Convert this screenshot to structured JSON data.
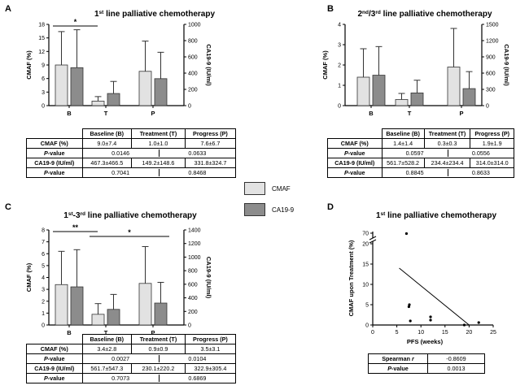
{
  "colors": {
    "cmaf": "#e2e2e2",
    "ca199": "#8c8c8c",
    "axis": "#000000"
  },
  "legend": {
    "cmaf": "CMAF",
    "ca199": "CA19-9"
  },
  "panels": [
    {
      "id": "A",
      "letter": "A",
      "title_pre": "1",
      "title_sup": "st",
      "title_post": " line palliative chemotherapy",
      "ylabel_left": "CMAF (%)",
      "ylabel_right": "CA19-9 (IU/ml)",
      "groups": [
        "B",
        "T",
        "P"
      ],
      "sig": [
        "*"
      ]
    },
    {
      "id": "B",
      "letter": "B",
      "title_pre": "2",
      "title_sup": "nd",
      "title_mid": "/3",
      "title_sup2": "rd",
      "title_post": " line palliative chemotherapy",
      "ylabel_left": "CMAF (%)",
      "ylabel_right": "CA19-9 (IU/ml)",
      "groups": [
        "B",
        "T",
        "P"
      ],
      "sig": []
    },
    {
      "id": "C",
      "letter": "C",
      "title_pre": "1",
      "title_sup": "st",
      "title_mid": "-3",
      "title_sup2": "rd",
      "title_post": " line palliative chemotherapy",
      "ylabel_left": "CMAF (%)",
      "ylabel_right": "CA19-9 (IU/ml)",
      "groups": [
        "B",
        "T",
        "P"
      ],
      "sig": [
        "**",
        "*"
      ]
    },
    {
      "id": "D",
      "letter": "D",
      "title_pre": "1",
      "title_sup": "st",
      "title_post": " line palliative chemotherapy",
      "ylabel_left": "CMAF upon Treatment (%)",
      "xlabel": "PFS (weeks)"
    }
  ],
  "chart_data": [
    {
      "panel": "A",
      "type": "bar",
      "categories": [
        "B",
        "T",
        "P"
      ],
      "series": [
        {
          "name": "CMAF",
          "axis": "left",
          "values": [
            9.0,
            1.0,
            7.6
          ],
          "error": [
            7.4,
            1.0,
            6.7
          ]
        },
        {
          "name": "CA19-9",
          "axis": "right",
          "values": [
            467.3,
            149.2,
            331.8
          ],
          "error": [
            466.5,
            148.6,
            324.7
          ]
        }
      ],
      "ylim_left": [
        0,
        18
      ],
      "yticks_left": [
        0,
        3,
        6,
        9,
        12,
        15,
        18
      ],
      "ylim_right": [
        0,
        1000
      ],
      "yticks_right": [
        0,
        200,
        400,
        600,
        800,
        1000
      ],
      "ylabel_left": "CMAF (%)",
      "ylabel_right": "CA19-9 (IU/ml)",
      "significance": [
        {
          "from": "B",
          "to": "T",
          "label": "*"
        }
      ]
    },
    {
      "panel": "B",
      "type": "bar",
      "categories": [
        "B",
        "T",
        "P"
      ],
      "series": [
        {
          "name": "CMAF",
          "axis": "left",
          "values": [
            1.4,
            0.3,
            1.9
          ],
          "error": [
            1.4,
            0.3,
            1.9
          ]
        },
        {
          "name": "CA19-9",
          "axis": "right",
          "values": [
            561.7,
            234.4,
            314.0
          ],
          "error": [
            528.2,
            234.4,
            314.0
          ]
        }
      ],
      "ylim_left": [
        0,
        4
      ],
      "yticks_left": [
        0,
        1,
        2,
        3,
        4
      ],
      "ylim_right": [
        0,
        1500
      ],
      "yticks_right": [
        0,
        300,
        600,
        900,
        1200,
        1500
      ],
      "ylabel_left": "CMAF (%)",
      "ylabel_right": "CA19-9 (IU/ml)",
      "significance": []
    },
    {
      "panel": "C",
      "type": "bar",
      "categories": [
        "B",
        "T",
        "P"
      ],
      "series": [
        {
          "name": "CMAF",
          "axis": "left",
          "values": [
            3.4,
            0.9,
            3.5
          ],
          "error": [
            2.8,
            0.9,
            3.1
          ]
        },
        {
          "name": "CA19-9",
          "axis": "right",
          "values": [
            561.7,
            230.1,
            322.9
          ],
          "error": [
            547.3,
            220.2,
            305.4
          ]
        }
      ],
      "ylim_left": [
        0,
        8
      ],
      "yticks_left": [
        0,
        1,
        2,
        3,
        4,
        5,
        6,
        7,
        8
      ],
      "ylim_right": [
        0,
        1400
      ],
      "yticks_right": [
        0,
        200,
        400,
        600,
        800,
        1000,
        1200,
        1400
      ],
      "ylabel_left": "CMAF (%)",
      "ylabel_right": "CA19-9 (IU/ml)",
      "significance": [
        {
          "from": "B",
          "to": "T",
          "label": "**"
        },
        {
          "from": "T",
          "to": "P",
          "label": "*"
        }
      ]
    },
    {
      "panel": "D",
      "type": "scatter",
      "xlabel": "PFS (weeks)",
      "ylabel": "CMAF upon Treatment (%)",
      "xlim": [
        0,
        25
      ],
      "xticks": [
        0,
        5,
        10,
        15,
        20,
        25
      ],
      "yticks": [
        0,
        5,
        10,
        15,
        20,
        70
      ],
      "axis_break": "between 20 and 70",
      "points": [
        [
          7,
          69
        ],
        [
          7.5,
          4.5
        ],
        [
          7.6,
          5
        ],
        [
          7.8,
          1
        ],
        [
          12,
          2
        ],
        [
          12,
          1.2
        ],
        [
          19,
          0
        ],
        [
          22,
          0.6
        ]
      ],
      "fit_line": [
        [
          5.5,
          14
        ],
        [
          20,
          0
        ]
      ]
    }
  ],
  "tables": {
    "A": {
      "headers": [
        "Baseline (B)",
        "Treatment (T)",
        "Progress (P)"
      ],
      "rows": [
        {
          "label": "CMAF (%)",
          "cells": [
            "9.0±7.4",
            "1.0±1.0",
            "7.6±6.7"
          ]
        },
        {
          "label": "P",
          "label_rest": "-value",
          "pvals": [
            "0.0146",
            "0.0633"
          ]
        },
        {
          "label": "CA19-9 (IU/ml)",
          "cells": [
            "467.3±466.5",
            "149.2±148.6",
            "331.8±324.7"
          ]
        },
        {
          "label": "P",
          "label_rest": "-value",
          "pvals": [
            "0.7041",
            "0.8468"
          ]
        }
      ]
    },
    "B": {
      "headers": [
        "Baseline (B)",
        "Treatment (T)",
        "Progress (P)"
      ],
      "rows": [
        {
          "label": "CMAF (%)",
          "cells": [
            "1.4±1.4",
            "0.3±0.3",
            "1.9±1.9"
          ]
        },
        {
          "label": "P",
          "label_rest": "-value",
          "pvals": [
            "0.0597",
            "0.0556"
          ]
        },
        {
          "label": "CA19-9 (IU/ml)",
          "cells": [
            "561.7±528.2",
            "234.4±234.4",
            "314.0±314.0"
          ]
        },
        {
          "label": "P",
          "label_rest": "-value",
          "pvals": [
            "0.8845",
            "0.8633"
          ]
        }
      ]
    },
    "C": {
      "headers": [
        "Baseline (B)",
        "Treatment (T)",
        "Progress (P)"
      ],
      "rows": [
        {
          "label": "CMAF (%)",
          "cells": [
            "3.4±2.8",
            "0.9±0.9",
            "3.5±3.1"
          ]
        },
        {
          "label": "P",
          "label_rest": "-value",
          "pvals": [
            "0.0027",
            "0.0104"
          ]
        },
        {
          "label": "CA19-9 (IU/ml)",
          "cells": [
            "561.7±547.3",
            "230.1±220.2",
            "322.9±305.4"
          ]
        },
        {
          "label": "P",
          "label_rest": "-value",
          "pvals": [
            "0.7073",
            "0.6869"
          ]
        }
      ]
    },
    "D": {
      "rows": [
        {
          "label": "Spearman ",
          "label_it": "r",
          "value": "-0.8609"
        },
        {
          "label": "P",
          "label_rest": "-value",
          "value": "0.0013"
        }
      ]
    }
  }
}
